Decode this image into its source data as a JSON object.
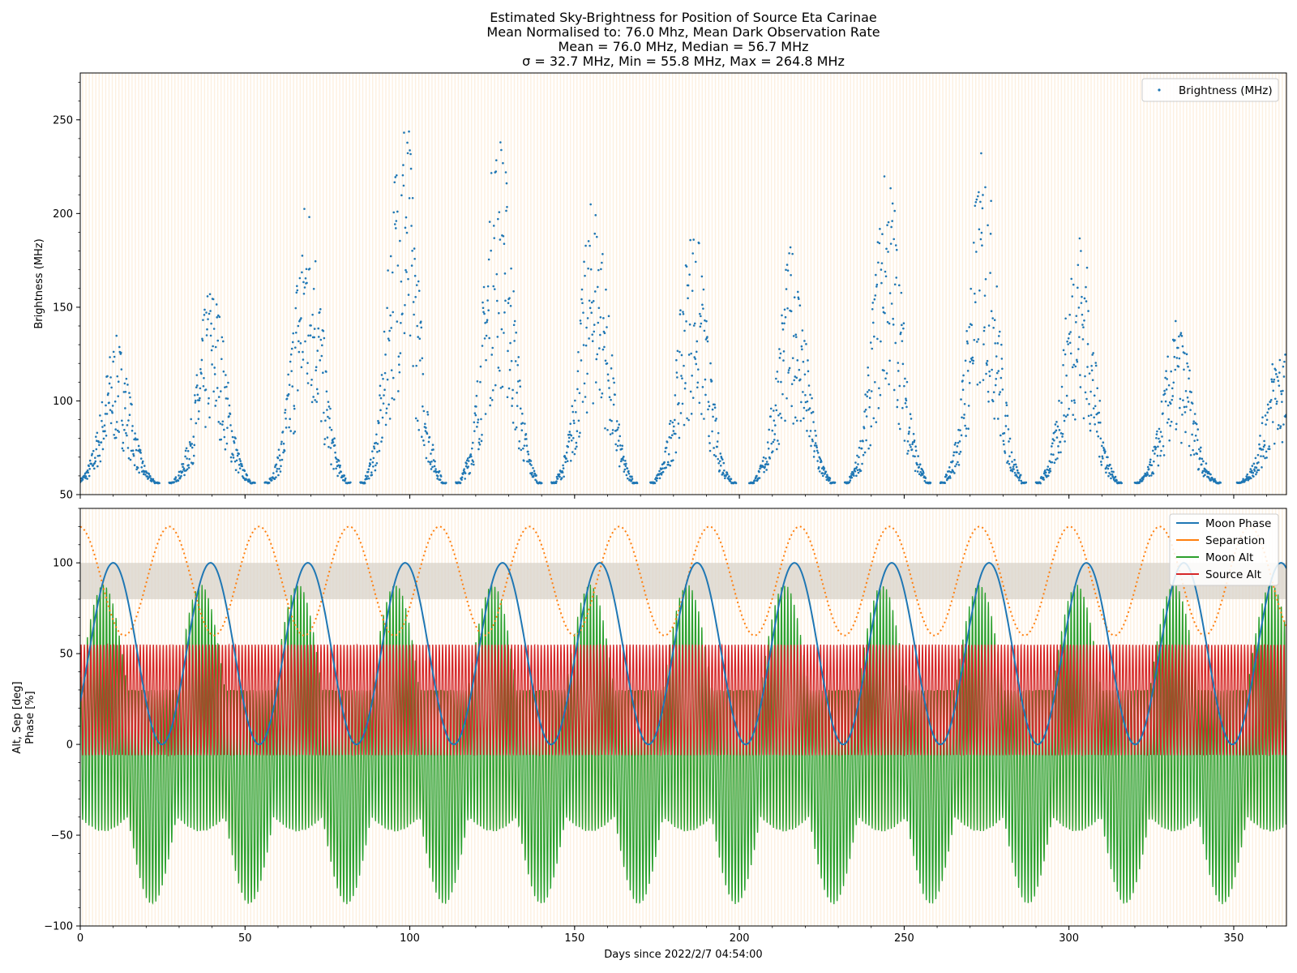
{
  "chart_data": {
    "title_lines": [
      "Estimated Sky-Brightness for Position of Source Eta Carinae",
      "Mean Normalised to: 76.0 Mhz, Mean Dark Observation Rate",
      "Mean = 76.0 MHz, Median = 56.7 MHz",
      "σ = 32.7 MHz, Min = 55.8 MHz, Max = 264.8 MHz"
    ],
    "xlabel": "Days since 2022/2/7 04:54:00",
    "x_ticks": [
      0,
      50,
      100,
      150,
      200,
      250,
      300,
      350
    ],
    "xlim": [
      0,
      366
    ],
    "colors": {
      "brightness": "#1f77b4",
      "moon_phase": "#1f77b4",
      "separation": "#ff7f0e",
      "moon_alt": "#2ca02c",
      "source_alt": "#d62728",
      "night_band": "#fbe4c6",
      "phase_band": "#d8d3c9"
    },
    "panels": [
      {
        "type": "scatter",
        "ylabel": "Brightness (MHz)",
        "ylim": [
          50,
          275
        ],
        "y_ticks": [
          50,
          100,
          150,
          200,
          250
        ],
        "legend": {
          "placement": "upper-right",
          "entries": [
            "Brightness (MHz)"
          ]
        },
        "baseline": 56,
        "peaks": [
          {
            "day": 11,
            "max": 135
          },
          {
            "day": 40,
            "max": 165
          },
          {
            "day": 69,
            "max": 214
          },
          {
            "day": 98,
            "max": 265
          },
          {
            "day": 127,
            "max": 250
          },
          {
            "day": 156,
            "max": 213
          },
          {
            "day": 186,
            "max": 198
          },
          {
            "day": 216,
            "max": 184
          },
          {
            "day": 245,
            "max": 229
          },
          {
            "day": 274,
            "max": 236
          },
          {
            "day": 303,
            "max": 196
          },
          {
            "day": 333,
            "max": 144
          },
          {
            "day": 364,
            "max": 133
          }
        ]
      },
      {
        "type": "line",
        "ylabel_lines": [
          "Alt, Sep [deg]",
          "Phase [%]"
        ],
        "ylim": [
          -100,
          130
        ],
        "y_ticks": [
          -100,
          -50,
          0,
          50,
          100
        ],
        "shaded_band": [
          80,
          100
        ],
        "legend": {
          "placement": "upper-right",
          "entries": [
            "Moon Phase",
            "Separation",
            "Moon Alt",
            "Source Alt"
          ]
        },
        "moon_phase_peaks": [
          10,
          39,
          69,
          98,
          127,
          156,
          186,
          216,
          245,
          274,
          303,
          333,
          364
        ],
        "separation_peaks": [
          0,
          27,
          54,
          81,
          109,
          136,
          163,
          190,
          218,
          245,
          273,
          300,
          327,
          355
        ],
        "separation_range": [
          60,
          120
        ],
        "moon_alt_range": [
          -90,
          90
        ],
        "source_alt_range": [
          -6,
          55
        ]
      }
    ]
  }
}
